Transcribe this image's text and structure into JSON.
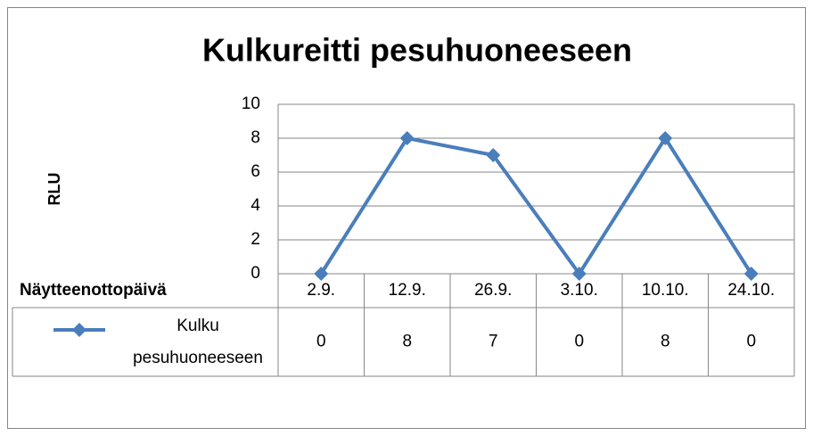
{
  "chart_data": {
    "type": "line",
    "title": "Kulkureitti pesuhuoneeseen",
    "ylabel": "RLU",
    "xlabel": "Näytteenottopäivä",
    "categories": [
      "2.9.",
      "12.9.",
      "26.9.",
      "3.10.",
      "10.10.",
      "24.10."
    ],
    "series": [
      {
        "name": "Kulku pesuhuoneeseen",
        "color": "#4a7ebb",
        "values": [
          0,
          8,
          7,
          0,
          8,
          0
        ]
      }
    ],
    "ylim": [
      0,
      10
    ],
    "yticks": [
      0,
      2,
      4,
      6,
      8,
      10
    ],
    "grid": true,
    "data_table": true
  }
}
